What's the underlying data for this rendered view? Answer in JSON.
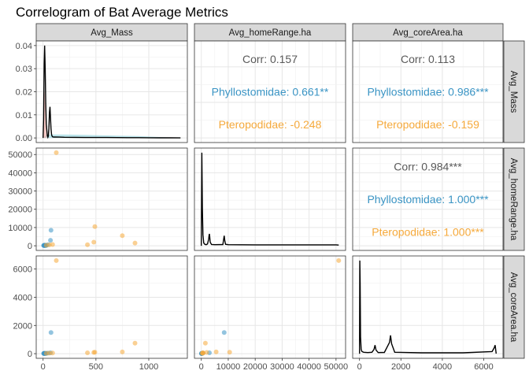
{
  "chart_data": {
    "type": "scatter",
    "title": "Correlogram of Bat Average Metrics",
    "variables": [
      "Avg_Mass",
      "Avg_homeRange.ha",
      "Avg_coreArea.ha"
    ],
    "axis_ticks": {
      "Avg_Mass": {
        "x": [
          0,
          500,
          1000
        ],
        "x_labels": [
          "0",
          "500",
          "1000"
        ],
        "density_y": [
          0,
          0.01,
          0.02,
          0.03,
          0.04
        ],
        "density_y_labels": [
          "0.00",
          "0.01",
          "0.02",
          "0.03",
          "0.04"
        ]
      },
      "Avg_homeRange.ha": {
        "x": [
          0,
          10000,
          20000,
          30000,
          40000,
          50000
        ],
        "x_labels": [
          "0",
          "10000",
          "20000",
          "30000",
          "40000",
          "50000"
        ],
        "y": [
          0,
          10000,
          20000,
          30000,
          40000,
          50000
        ],
        "y_labels": [
          "0",
          "10000",
          "20000",
          "30000",
          "40000",
          "50000"
        ]
      },
      "Avg_coreArea.ha": {
        "x": [
          0,
          2000,
          4000,
          6000
        ],
        "x_labels": [
          "0",
          "2000",
          "4000",
          "6000"
        ],
        "y": [
          0,
          2000,
          4000,
          6000
        ],
        "y_labels": [
          "0",
          "2000",
          "4000",
          "6000"
        ]
      }
    },
    "axis_ranges": {
      "Avg_Mass": [
        -65,
        1365
      ],
      "Avg_homeRange.ha": [
        -2550,
        53550
      ],
      "Avg_coreArea.ha": [
        -330,
        6930
      ],
      "density_mass": [
        -0.002,
        0.042
      ]
    },
    "correlations": [
      {
        "row": 0,
        "col": 1,
        "lines": [
          "Corr: 0.157",
          "Phyllostomidae: 0.661**",
          "Pteropodidae: -0.248"
        ]
      },
      {
        "row": 0,
        "col": 2,
        "lines": [
          "Corr: 0.113",
          "Phyllostomidae: 0.986***",
          "Pteropodidae: -0.159"
        ]
      },
      {
        "row": 1,
        "col": 2,
        "lines": [
          "Corr: 0.984***",
          "Phyllostomidae: 1.000***",
          "Pteropodidae: 1.000***"
        ]
      }
    ],
    "colors": {
      "overall": "#595959",
      "Phyllostomidae": "#3a94c4",
      "Pteropodidae": "#f5a93b",
      "density_line": "#000000",
      "density_fill_phyllo": "#8fd3dd",
      "density_fill_ptero": "#f4a7a0"
    },
    "groups": [
      {
        "name": "Phyllostomidae",
        "points": [
          {
            "mass": 5,
            "homeRange": 120,
            "coreArea": 10
          },
          {
            "mass": 8,
            "homeRange": 200,
            "coreArea": 15
          },
          {
            "mass": 10,
            "homeRange": 80,
            "coreArea": 8
          },
          {
            "mass": 12,
            "homeRange": 300,
            "coreArea": 25
          },
          {
            "mass": 15,
            "homeRange": 150,
            "coreArea": 12
          },
          {
            "mass": 18,
            "homeRange": 400,
            "coreArea": 30
          },
          {
            "mass": 20,
            "homeRange": 100,
            "coreArea": 9
          },
          {
            "mass": 25,
            "homeRange": 250,
            "coreArea": 20
          },
          {
            "mass": 30,
            "homeRange": 180,
            "coreArea": 14
          },
          {
            "mass": 45,
            "homeRange": 600,
            "coreArea": 40
          },
          {
            "mass": 70,
            "homeRange": 3000,
            "coreArea": 60
          },
          {
            "mass": 75,
            "homeRange": 8500,
            "coreArea": 1500
          }
        ]
      },
      {
        "name": "Pteropodidae",
        "points": [
          {
            "mass": 30,
            "homeRange": 300,
            "coreArea": 30
          },
          {
            "mass": 60,
            "homeRange": 500,
            "coreArea": 40
          },
          {
            "mass": 90,
            "homeRange": 700,
            "coreArea": 50
          },
          {
            "mass": 125,
            "homeRange": 51000,
            "coreArea": 6600
          },
          {
            "mass": 420,
            "homeRange": 600,
            "coreArea": 60
          },
          {
            "mass": 480,
            "homeRange": 2000,
            "coreArea": 90
          },
          {
            "mass": 490,
            "homeRange": 10500,
            "coreArea": 100
          },
          {
            "mass": 750,
            "homeRange": 5500,
            "coreArea": 120
          },
          {
            "mass": 870,
            "homeRange": 1500,
            "coreArea": 750
          }
        ]
      }
    ],
    "densities": {
      "Avg_Mass": {
        "x": [
          0,
          5,
          10,
          15,
          20,
          25,
          30,
          40,
          45,
          50,
          55,
          60,
          65,
          70,
          75,
          80,
          85,
          90,
          100,
          150,
          200,
          300,
          400,
          500,
          600,
          700,
          800,
          900,
          1000,
          1100,
          1200,
          1300
        ],
        "y": [
          0.0,
          0.008,
          0.032,
          0.04,
          0.03,
          0.015,
          0.006,
          0.001,
          0.0003,
          0.0008,
          0.004,
          0.011,
          0.0135,
          0.009,
          0.004,
          0.0015,
          0.0008,
          0.0005,
          0.0004,
          0.00035,
          0.0003,
          0.00025,
          0.0002,
          0.0002,
          0.00018,
          0.00015,
          0.00012,
          0.0001,
          8e-05,
          5e-05,
          3e-05,
          1e-05
        ]
      },
      "Avg_Mass_fill_Pteropodidae": {
        "x": [
          0,
          5,
          10,
          15,
          20,
          25,
          30,
          35
        ],
        "y": [
          0.0,
          0.01,
          0.02,
          0.02,
          0.015,
          0.008,
          0.003,
          0.0
        ]
      },
      "Avg_Mass_fill_Phyllostomidae": {
        "x": [
          0,
          30,
          50,
          100,
          200,
          300,
          400,
          500,
          600,
          700,
          800,
          900,
          1000,
          1100,
          1200,
          1300
        ],
        "y": [
          0.0,
          0.0012,
          0.0014,
          0.0015,
          0.0015,
          0.0014,
          0.0013,
          0.0012,
          0.0011,
          0.001,
          0.0009,
          0.0008,
          0.0006,
          0.0004,
          0.0002,
          0.0
        ]
      },
      "Avg_homeRange.ha": {
        "x": [
          0,
          200,
          400,
          600,
          900,
          1300,
          1800,
          2300,
          2700,
          2900,
          3000,
          3100,
          3300,
          3800,
          5000,
          8000,
          8300,
          8500,
          8700,
          9000,
          10000,
          20000,
          30000,
          40000,
          50000,
          51000
        ],
        "y": [
          0.0,
          51000,
          20000,
          6000,
          1500,
          800,
          600,
          1000,
          3500,
          6000,
          6500,
          5500,
          2000,
          700,
          600,
          700,
          3500,
          5500,
          3000,
          800,
          600,
          500,
          500,
          500,
          500,
          400
        ]
      },
      "Avg_coreArea.ha": {
        "x": [
          0,
          15,
          30,
          50,
          80,
          120,
          200,
          400,
          600,
          700,
          750,
          800,
          900,
          1200,
          1450,
          1500,
          1550,
          1700,
          3000,
          5000,
          6400,
          6500,
          6550,
          6600
        ],
        "y": [
          0,
          6600,
          5000,
          1200,
          300,
          150,
          100,
          80,
          100,
          300,
          600,
          250,
          80,
          90,
          800,
          1300,
          700,
          100,
          60,
          60,
          150,
          400,
          600,
          0
        ]
      }
    }
  }
}
